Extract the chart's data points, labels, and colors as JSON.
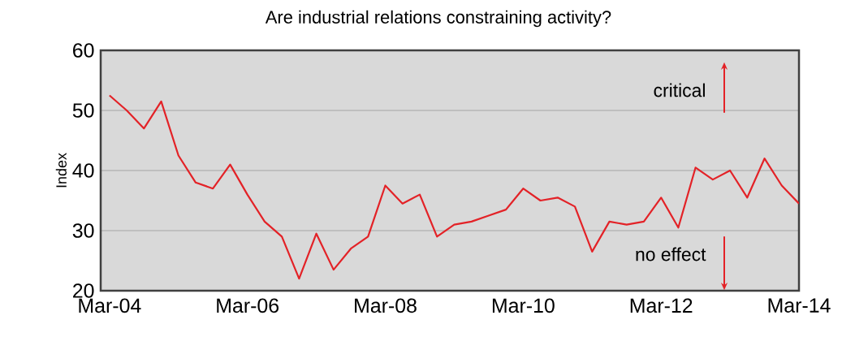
{
  "chart_data": {
    "type": "line",
    "title": "Are industrial relations constraining activity?",
    "ylabel": "Index",
    "x": [
      "2004-03",
      "2004-06",
      "2004-09",
      "2004-12",
      "2005-03",
      "2005-06",
      "2005-09",
      "2005-12",
      "2006-03",
      "2006-06",
      "2006-09",
      "2006-12",
      "2007-03",
      "2007-06",
      "2007-09",
      "2007-12",
      "2008-03",
      "2008-06",
      "2008-09",
      "2008-12",
      "2009-03",
      "2009-06",
      "2009-09",
      "2009-12",
      "2010-03",
      "2010-06",
      "2010-09",
      "2010-12",
      "2011-03",
      "2011-06",
      "2011-09",
      "2011-12",
      "2012-03",
      "2012-06",
      "2012-09",
      "2012-12",
      "2013-03",
      "2013-06",
      "2013-09",
      "2013-12",
      "2014-03"
    ],
    "series": [
      {
        "color": "#e32227",
        "values": [
          52.5,
          50,
          47,
          51.5,
          42.5,
          38,
          37,
          41,
          36,
          31.5,
          29,
          22,
          29.5,
          23.5,
          27,
          29,
          37.5,
          34.5,
          36,
          29,
          31,
          31.5,
          32.5,
          33.5,
          37,
          35,
          35.5,
          34,
          26.5,
          31.5,
          31,
          31.5,
          35.5,
          30.5,
          40.5,
          38.5,
          40,
          35.5,
          42,
          37.5,
          34.5
        ]
      }
    ],
    "xlim": [
      "2004-01-15",
      "2014-03"
    ],
    "xticks": [
      {
        "value": "2004-03",
        "label": "Mar-04"
      },
      {
        "value": "2006-03",
        "label": "Mar-06"
      },
      {
        "value": "2008-03",
        "label": "Mar-08"
      },
      {
        "value": "2010-03",
        "label": "Mar-10"
      },
      {
        "value": "2012-03",
        "label": "Mar-12"
      },
      {
        "value": "2014-03",
        "label": "Mar-14"
      }
    ],
    "ylim": [
      20,
      60
    ],
    "yticks": [
      20,
      30,
      40,
      50,
      60
    ],
    "grid": "y",
    "annotations": [
      "critical",
      "no effect"
    ]
  }
}
